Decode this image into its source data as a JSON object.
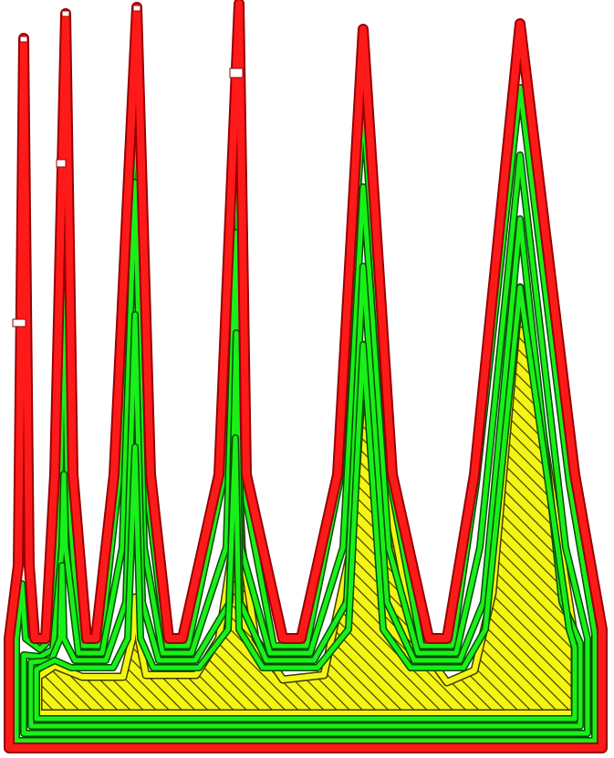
{
  "colors": {
    "background": "#ffffff",
    "outer_wall": "#ff1a1a",
    "outer_wall_edge": "#9a0000",
    "inner_wall": "#19f019",
    "inner_wall_edge": "#064b06",
    "infill": "#f5f514",
    "infill_edge": "#3d3d00"
  },
  "legend": [],
  "paths": {
    "outer_wall": "outer-wall-path",
    "inner_walls": [
      "inner-wall-1",
      "inner-wall-2",
      "inner-wall-3",
      "inner-wall-4"
    ],
    "infill_boundary": "infill-boundary"
  }
}
